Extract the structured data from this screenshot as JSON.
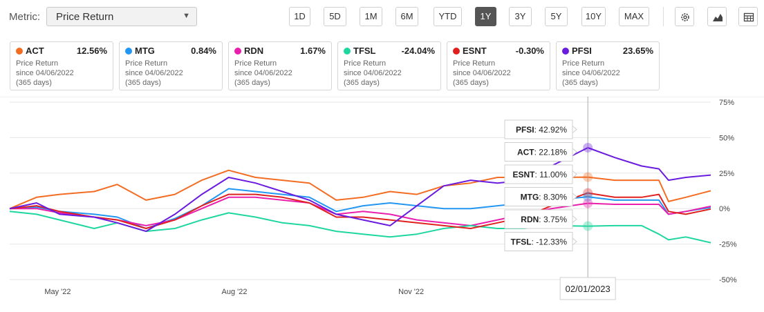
{
  "toolbar": {
    "metric_label": "Metric:",
    "metric_value": "Price Return",
    "ranges": [
      "1D",
      "5D",
      "1M",
      "6M",
      "YTD",
      "1Y",
      "3Y",
      "5Y",
      "10Y",
      "MAX"
    ],
    "active_range": "1Y",
    "icons": [
      "gear-icon",
      "mountain-chart-icon",
      "table-icon"
    ]
  },
  "cards": [
    {
      "ticker": "ACT",
      "value": "12.56%",
      "color": "#f36c21",
      "metric": "Price Return",
      "since": "since 04/06/2022",
      "days": "(365 days)"
    },
    {
      "ticker": "MTG",
      "value": "0.84%",
      "color": "#2196f3",
      "metric": "Price Return",
      "since": "since 04/06/2022",
      "days": "(365 days)"
    },
    {
      "ticker": "RDN",
      "value": "1.67%",
      "color": "#e91eac",
      "metric": "Price Return",
      "since": "since 04/06/2022",
      "days": "(365 days)"
    },
    {
      "ticker": "TFSL",
      "value": "-24.04%",
      "color": "#1ed6a0",
      "metric": "Price Return",
      "since": "since 04/06/2022",
      "days": "(365 days)"
    },
    {
      "ticker": "ESNT",
      "value": "-0.30%",
      "color": "#e0201f",
      "metric": "Price Return",
      "since": "since 04/06/2022",
      "days": "(365 days)"
    },
    {
      "ticker": "PFSI",
      "value": "23.65%",
      "color": "#6a1be0",
      "metric": "Price Return",
      "since": "since 04/06/2022",
      "days": "(365 days)"
    }
  ],
  "chart_data": {
    "type": "line",
    "x_range": [
      "2022-04-06",
      "2023-04-06"
    ],
    "x_ticks": [
      {
        "date": "2022-05-01",
        "label": "May '22"
      },
      {
        "date": "2022-08-01",
        "label": "Aug '22"
      },
      {
        "date": "2022-11-01",
        "label": "Nov '22"
      },
      {
        "date": "2023-02-01",
        "label": "Feb '23"
      }
    ],
    "y_range": [
      -50,
      75
    ],
    "y_ticks": [
      {
        "value": 75,
        "label": "75%"
      },
      {
        "value": 50,
        "label": "50%"
      },
      {
        "value": 25,
        "label": "25%"
      },
      {
        "value": 0,
        "label": "0%"
      },
      {
        "value": -25,
        "label": "-25%"
      },
      {
        "value": -50,
        "label": "-50%"
      }
    ],
    "grid": true,
    "crosshair": {
      "date": "2023-02-01",
      "label": "02/01/2023"
    },
    "tooltip": [
      {
        "name": "PFSI",
        "value": "42.92%"
      },
      {
        "name": "ACT",
        "value": "22.18%"
      },
      {
        "name": "ESNT",
        "value": "11.00%"
      },
      {
        "name": "MTG",
        "value": "8.30%"
      },
      {
        "name": "RDN",
        "value": "3.75%"
      },
      {
        "name": "TFSL",
        "value": "-12.33%"
      }
    ],
    "series": [
      {
        "name": "ACT",
        "color": "#f36c21",
        "points": [
          [
            "2022-04-06",
            0
          ],
          [
            "2022-04-20",
            8
          ],
          [
            "2022-05-02",
            10
          ],
          [
            "2022-05-20",
            12
          ],
          [
            "2022-06-01",
            17
          ],
          [
            "2022-06-16",
            6
          ],
          [
            "2022-07-01",
            10
          ],
          [
            "2022-07-15",
            20
          ],
          [
            "2022-07-29",
            27
          ],
          [
            "2022-08-12",
            22
          ],
          [
            "2022-08-26",
            20
          ],
          [
            "2022-09-09",
            18
          ],
          [
            "2022-09-23",
            6
          ],
          [
            "2022-10-07",
            8
          ],
          [
            "2022-10-21",
            12
          ],
          [
            "2022-11-04",
            10
          ],
          [
            "2022-11-18",
            16
          ],
          [
            "2022-12-02",
            18
          ],
          [
            "2022-12-16",
            22
          ],
          [
            "2022-12-30",
            22
          ],
          [
            "2023-01-13",
            22
          ],
          [
            "2023-02-01",
            22.18
          ],
          [
            "2023-02-15",
            20
          ],
          [
            "2023-03-01",
            20
          ],
          [
            "2023-03-10",
            20
          ],
          [
            "2023-03-15",
            5
          ],
          [
            "2023-03-24",
            8
          ],
          [
            "2023-04-06",
            12.56
          ]
        ]
      },
      {
        "name": "MTG",
        "color": "#2196f3",
        "points": [
          [
            "2022-04-06",
            0
          ],
          [
            "2022-04-20",
            1
          ],
          [
            "2022-05-02",
            -2
          ],
          [
            "2022-05-20",
            -4
          ],
          [
            "2022-06-01",
            -6
          ],
          [
            "2022-06-16",
            -14
          ],
          [
            "2022-07-01",
            -7
          ],
          [
            "2022-07-15",
            2
          ],
          [
            "2022-07-29",
            14
          ],
          [
            "2022-08-12",
            12
          ],
          [
            "2022-08-26",
            10
          ],
          [
            "2022-09-09",
            8
          ],
          [
            "2022-09-23",
            -2
          ],
          [
            "2022-10-07",
            2
          ],
          [
            "2022-10-21",
            4
          ],
          [
            "2022-11-04",
            2
          ],
          [
            "2022-11-18",
            0
          ],
          [
            "2022-12-02",
            0
          ],
          [
            "2022-12-16",
            2
          ],
          [
            "2022-12-30",
            4
          ],
          [
            "2023-01-13",
            6
          ],
          [
            "2023-02-01",
            8.3
          ],
          [
            "2023-02-15",
            6
          ],
          [
            "2023-03-01",
            6
          ],
          [
            "2023-03-10",
            6
          ],
          [
            "2023-03-15",
            -4
          ],
          [
            "2023-03-24",
            -2
          ],
          [
            "2023-04-06",
            0.84
          ]
        ]
      },
      {
        "name": "RDN",
        "color": "#e91eac",
        "points": [
          [
            "2022-04-06",
            0
          ],
          [
            "2022-04-20",
            0
          ],
          [
            "2022-05-02",
            -3
          ],
          [
            "2022-05-20",
            -6
          ],
          [
            "2022-06-01",
            -8
          ],
          [
            "2022-06-16",
            -12
          ],
          [
            "2022-07-01",
            -8
          ],
          [
            "2022-07-15",
            0
          ],
          [
            "2022-07-29",
            8
          ],
          [
            "2022-08-12",
            8
          ],
          [
            "2022-08-26",
            6
          ],
          [
            "2022-09-09",
            4
          ],
          [
            "2022-09-23",
            -4
          ],
          [
            "2022-10-07",
            -2
          ],
          [
            "2022-10-21",
            -4
          ],
          [
            "2022-11-04",
            -8
          ],
          [
            "2022-11-18",
            -10
          ],
          [
            "2022-12-02",
            -12
          ],
          [
            "2022-12-16",
            -8
          ],
          [
            "2022-12-30",
            -4
          ],
          [
            "2023-01-13",
            0
          ],
          [
            "2023-02-01",
            3.75
          ],
          [
            "2023-02-15",
            3
          ],
          [
            "2023-03-01",
            3
          ],
          [
            "2023-03-10",
            3
          ],
          [
            "2023-03-15",
            -4
          ],
          [
            "2023-03-24",
            -2
          ],
          [
            "2023-04-06",
            1.67
          ]
        ]
      },
      {
        "name": "TFSL",
        "color": "#1ed6a0",
        "points": [
          [
            "2022-04-06",
            -2
          ],
          [
            "2022-04-20",
            -4
          ],
          [
            "2022-05-02",
            -8
          ],
          [
            "2022-05-20",
            -14
          ],
          [
            "2022-06-01",
            -10
          ],
          [
            "2022-06-16",
            -16
          ],
          [
            "2022-07-01",
            -14
          ],
          [
            "2022-07-15",
            -8
          ],
          [
            "2022-07-29",
            -3
          ],
          [
            "2022-08-12",
            -6
          ],
          [
            "2022-08-26",
            -10
          ],
          [
            "2022-09-09",
            -12
          ],
          [
            "2022-09-23",
            -16
          ],
          [
            "2022-10-07",
            -18
          ],
          [
            "2022-10-21",
            -20
          ],
          [
            "2022-11-04",
            -18
          ],
          [
            "2022-11-18",
            -14
          ],
          [
            "2022-12-02",
            -12
          ],
          [
            "2022-12-16",
            -14
          ],
          [
            "2022-12-30",
            -14
          ],
          [
            "2023-01-13",
            -12
          ],
          [
            "2023-02-01",
            -12.33
          ],
          [
            "2023-02-15",
            -12
          ],
          [
            "2023-03-01",
            -12
          ],
          [
            "2023-03-10",
            -18
          ],
          [
            "2023-03-15",
            -22
          ],
          [
            "2023-03-24",
            -20
          ],
          [
            "2023-04-06",
            -24.04
          ]
        ]
      },
      {
        "name": "ESNT",
        "color": "#e0201f",
        "points": [
          [
            "2022-04-06",
            0
          ],
          [
            "2022-04-20",
            2
          ],
          [
            "2022-05-02",
            -2
          ],
          [
            "2022-05-20",
            -6
          ],
          [
            "2022-06-01",
            -8
          ],
          [
            "2022-06-16",
            -14
          ],
          [
            "2022-07-01",
            -8
          ],
          [
            "2022-07-15",
            2
          ],
          [
            "2022-07-29",
            10
          ],
          [
            "2022-08-12",
            10
          ],
          [
            "2022-08-26",
            8
          ],
          [
            "2022-09-09",
            4
          ],
          [
            "2022-09-23",
            -6
          ],
          [
            "2022-10-07",
            -6
          ],
          [
            "2022-10-21",
            -8
          ],
          [
            "2022-11-04",
            -10
          ],
          [
            "2022-11-18",
            -12
          ],
          [
            "2022-12-02",
            -14
          ],
          [
            "2022-12-16",
            -10
          ],
          [
            "2022-12-30",
            -6
          ],
          [
            "2023-01-13",
            2
          ],
          [
            "2023-02-01",
            11
          ],
          [
            "2023-02-15",
            8
          ],
          [
            "2023-03-01",
            8
          ],
          [
            "2023-03-10",
            10
          ],
          [
            "2023-03-15",
            -2
          ],
          [
            "2023-03-24",
            -4
          ],
          [
            "2023-04-06",
            -0.3
          ]
        ]
      },
      {
        "name": "PFSI",
        "color": "#6a1be0",
        "points": [
          [
            "2022-04-06",
            0
          ],
          [
            "2022-04-20",
            4
          ],
          [
            "2022-05-02",
            -4
          ],
          [
            "2022-05-20",
            -6
          ],
          [
            "2022-06-01",
            -10
          ],
          [
            "2022-06-16",
            -16
          ],
          [
            "2022-07-01",
            -4
          ],
          [
            "2022-07-15",
            10
          ],
          [
            "2022-07-29",
            22
          ],
          [
            "2022-08-12",
            18
          ],
          [
            "2022-08-26",
            12
          ],
          [
            "2022-09-09",
            6
          ],
          [
            "2022-09-23",
            -4
          ],
          [
            "2022-10-07",
            -8
          ],
          [
            "2022-10-21",
            -12
          ],
          [
            "2022-11-04",
            2
          ],
          [
            "2022-11-18",
            16
          ],
          [
            "2022-12-02",
            20
          ],
          [
            "2022-12-16",
            18
          ],
          [
            "2022-12-30",
            20
          ],
          [
            "2023-01-13",
            30
          ],
          [
            "2023-02-01",
            42.92
          ],
          [
            "2023-02-15",
            36
          ],
          [
            "2023-03-01",
            30
          ],
          [
            "2023-03-10",
            28
          ],
          [
            "2023-03-15",
            20
          ],
          [
            "2023-03-24",
            22
          ],
          [
            "2023-04-06",
            23.65
          ]
        ]
      }
    ]
  }
}
